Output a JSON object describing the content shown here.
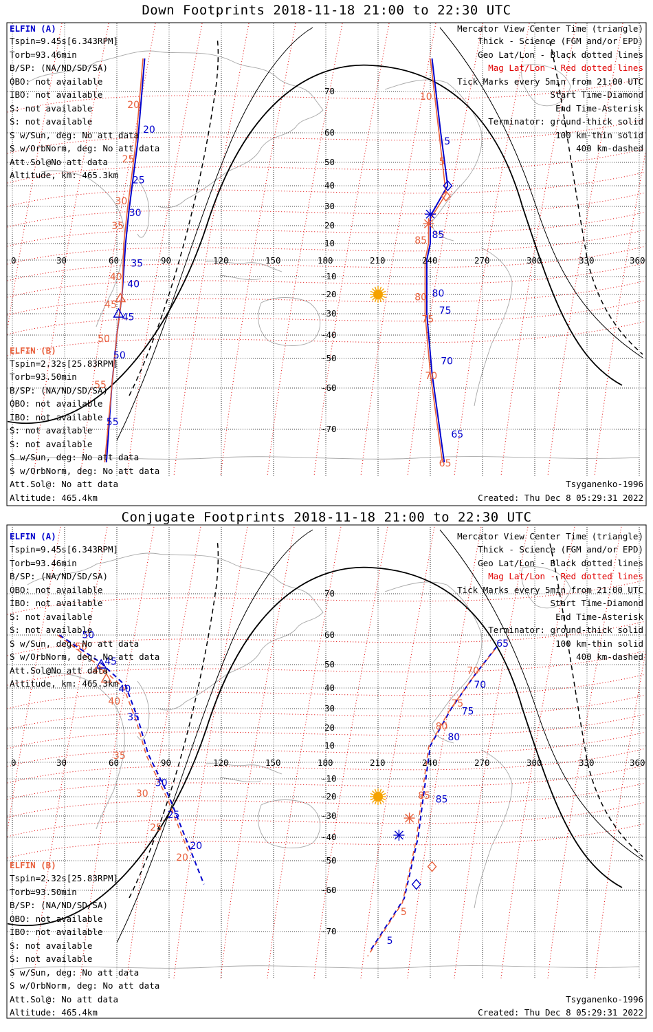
{
  "top_panel": {
    "title": "Down Footprints 2018-11-18 21:00 to 22:30 UTC",
    "elfin_a": {
      "header": "ELFIN (A)",
      "lines": [
        "Tspin=9.45s[6.343RPM]",
        "Torb=93.46min",
        "B/SP: (NA/ND/SD/SA)",
        "OBO: not available",
        "IBO: not available",
        "S: not available",
        "S: not available",
        "S w/Sun, deg: No att data",
        "S w/OrbNorm, deg: No att data",
        "Att.Sol@No att data",
        "Altitude, km: 465.3km"
      ]
    },
    "elfin_b": {
      "header": "ELFIN (B)",
      "lines": [
        "Tspin=2.32s[25.83RPM]",
        "Torb=93.50min",
        "B/SP: (NA/ND/SD/SA)",
        "OBO: not available",
        "IBO: not available",
        "S: not available",
        "S: not available",
        "S w/Sun, deg: No att data",
        "S w/OrbNorm, deg: No att data",
        "Att.Sol@: No att data",
        "Altitude: 465.4km"
      ]
    },
    "legend": [
      "Mercator View Center Time (triangle)",
      "Thick - Science (FGM and/or EPD)",
      "Geo Lat/Lon - Black dotted lines",
      "Mag Lat/Lon - Red dotted lines",
      "Tick Marks every 5min from 21:00 UTC",
      "Start Time-Diamond",
      "End Time-Asterisk",
      "Terminator: ground-thick solid",
      "100 km-thin solid",
      "400 km-dashed"
    ],
    "model": "Tsyganenko-1996",
    "created": "Created: Thu Dec  8 05:29:31 2022"
  },
  "bottom_panel": {
    "title": "Conjugate Footprints 2018-11-18 21:00 to 22:30 UTC",
    "elfin_a": {
      "header": "ELFIN (A)",
      "lines": [
        "Tspin=9.45s[6.343RPM]",
        "Torb=93.46min",
        "B/SP: (NA/ND/SD/SA)",
        "OBO: not available",
        "IBO: not available",
        "S: not available",
        "S: not available",
        "S w/Sun, deg: No att data",
        "S w/OrbNorm, deg: No att data",
        "Att.Sol@No att data",
        "Altitude, km: 465.3km"
      ]
    },
    "elfin_b": {
      "header": "ELFIN (B)",
      "lines": [
        "Tspin=2.32s[25.83RPM]",
        "Torb=93.50min",
        "B/SP: (NA/ND/SD/SA)",
        "OBO: not available",
        "IBO: not available",
        "S: not available",
        "S: not available",
        "S w/Sun, deg: No att data",
        "S w/OrbNorm, deg: No att data",
        "Att.Sol@: No att data",
        "Altitude: 465.4km"
      ]
    },
    "legend": [
      "Mercator View Center Time (triangle)",
      "Thick - Science (FGM and/or EPD)",
      "Geo Lat/Lon - Black dotted lines",
      "Mag Lat/Lon - Red dotted lines",
      "Tick Marks every 5min from 21:00 UTC",
      "Start Time-Diamond",
      "End Time-Asterisk",
      "Terminator: ground-thick solid",
      "100 km-thin solid",
      "400 km-dashed"
    ],
    "model": "Tsyganenko-1996",
    "created": "Created: Thu Dec  8 05:29:31 2022"
  },
  "lon_ticks": [
    "0",
    "30",
    "60",
    "90",
    "120",
    "150",
    "180",
    "210",
    "240",
    "270",
    "300",
    "330",
    "360"
  ],
  "lat_ticks": [
    {
      "lat": 70,
      "label": "70"
    },
    {
      "lat": 60,
      "label": "60"
    },
    {
      "lat": 50,
      "label": "50"
    },
    {
      "lat": 40,
      "label": "40"
    },
    {
      "lat": 30,
      "label": "30"
    },
    {
      "lat": 20,
      "label": "20"
    },
    {
      "lat": 10,
      "label": "10"
    },
    {
      "lat": -10,
      "label": "-10"
    },
    {
      "lat": -20,
      "label": "-20"
    },
    {
      "lat": -30,
      "label": "-30"
    },
    {
      "lat": -40,
      "label": "-40"
    },
    {
      "lat": -50,
      "label": "-50"
    },
    {
      "lat": -60,
      "label": "-60"
    },
    {
      "lat": -70,
      "label": "-70"
    }
  ],
  "colors": {
    "elfin_a": "#0000cc",
    "elfin_b": "#e8603c",
    "mag_grid": "#e00000",
    "sun": "#f5a200",
    "coast": "#a8a8a8"
  },
  "sun": {
    "top": {
      "lon": 210,
      "lat": -20
    },
    "bottom": {
      "lon": 210,
      "lat": -20
    }
  },
  "tracks": {
    "top": [
      {
        "sat": "a",
        "style": "solid",
        "points": [
          [
            76,
            78
          ],
          [
            72,
            57
          ],
          [
            67,
            28
          ],
          [
            65,
            10
          ],
          [
            63,
            -20
          ],
          [
            60,
            -40
          ],
          [
            57,
            -60
          ],
          [
            54,
            -78
          ]
        ]
      },
      {
        "sat": "b",
        "style": "solid",
        "points": [
          [
            75,
            78
          ],
          [
            71,
            57
          ],
          [
            66,
            28
          ],
          [
            64,
            10
          ],
          [
            63,
            -20
          ],
          [
            60,
            -40
          ],
          [
            57,
            -60
          ],
          [
            53,
            -78
          ]
        ]
      },
      {
        "sat": "a",
        "style": "solid",
        "points": [
          [
            241,
            78
          ],
          [
            246,
            60
          ],
          [
            250,
            40
          ],
          [
            240,
            25
          ],
          [
            240,
            10
          ],
          [
            238,
            0
          ],
          [
            238,
            -30
          ],
          [
            241,
            -55
          ],
          [
            248,
            -78
          ]
        ]
      },
      {
        "sat": "b",
        "style": "solid",
        "points": [
          [
            240,
            78
          ],
          [
            245,
            60
          ],
          [
            249,
            36
          ],
          [
            239,
            22
          ],
          [
            239,
            10
          ],
          [
            237,
            0
          ],
          [
            237,
            -30
          ],
          [
            240,
            -55
          ],
          [
            247,
            -78
          ]
        ]
      }
    ],
    "bottom": [
      {
        "sat": "a",
        "style": "dashed",
        "points": [
          [
            27,
            60
          ],
          [
            50,
            51
          ],
          [
            65,
            41
          ],
          [
            72,
            25
          ],
          [
            78,
            5
          ],
          [
            90,
            -20
          ],
          [
            102,
            -45
          ],
          [
            110,
            -58
          ]
        ]
      },
      {
        "sat": "b",
        "style": "dashed",
        "points": [
          [
            26,
            60
          ],
          [
            49,
            50
          ],
          [
            64,
            40
          ],
          [
            71,
            24
          ],
          [
            77,
            4
          ],
          [
            89,
            -21
          ],
          [
            101,
            -46
          ]
        ]
      },
      {
        "sat": "a",
        "style": "dashed",
        "points": [
          [
            278,
            56
          ],
          [
            265,
            45
          ],
          [
            252,
            30
          ],
          [
            240,
            10
          ],
          [
            236,
            -20
          ],
          [
            233,
            -40
          ],
          [
            225,
            -62
          ],
          [
            205,
            -75
          ]
        ]
      },
      {
        "sat": "b",
        "style": "dashed",
        "points": [
          [
            277,
            55
          ],
          [
            264,
            44
          ],
          [
            251,
            29
          ],
          [
            239,
            9
          ],
          [
            235,
            -21
          ],
          [
            232,
            -41
          ],
          [
            224,
            -63
          ],
          [
            204,
            -76
          ]
        ]
      }
    ]
  },
  "markers": {
    "top": [
      {
        "type": "triangle",
        "sat": "b",
        "lon": 62,
        "lat": -22
      },
      {
        "type": "triangle",
        "sat": "a",
        "lon": 61,
        "lat": -30
      },
      {
        "type": "diamond",
        "sat": "a",
        "lon": 250,
        "lat": 40
      },
      {
        "type": "diamond",
        "sat": "b",
        "lon": 249,
        "lat": 35
      },
      {
        "type": "asterisk",
        "sat": "a",
        "lon": 240,
        "lat": 26
      },
      {
        "type": "asterisk",
        "sat": "b",
        "lon": 239,
        "lat": 21
      }
    ],
    "bottom": [
      {
        "type": "triangle",
        "sat": "a",
        "lon": 51,
        "lat": 50
      },
      {
        "type": "triangle",
        "sat": "b",
        "lon": 54,
        "lat": 44
      },
      {
        "type": "diamond",
        "sat": "a",
        "lon": 232,
        "lat": -58
      },
      {
        "type": "diamond",
        "sat": "b",
        "lon": 241,
        "lat": -52
      },
      {
        "type": "asterisk",
        "sat": "a",
        "lon": 222,
        "lat": -39
      },
      {
        "type": "asterisk",
        "sat": "b",
        "lon": 228,
        "lat": -31
      }
    ]
  },
  "tick_labels": {
    "top": [
      {
        "sat": "b",
        "text": "20",
        "lon": 66,
        "lat": 66
      },
      {
        "sat": "a",
        "text": "20",
        "lon": 75,
        "lat": 60
      },
      {
        "sat": "b",
        "text": "25",
        "lon": 63,
        "lat": 50
      },
      {
        "sat": "a",
        "text": "25",
        "lon": 69,
        "lat": 41
      },
      {
        "sat": "b",
        "text": "30",
        "lon": 59,
        "lat": 31
      },
      {
        "sat": "a",
        "text": "30",
        "lon": 67,
        "lat": 25
      },
      {
        "sat": "b",
        "text": "35",
        "lon": 57,
        "lat": 18
      },
      {
        "sat": "a",
        "text": "35",
        "lon": 68,
        "lat": -4
      },
      {
        "sat": "b",
        "text": "40",
        "lon": 56,
        "lat": -12
      },
      {
        "sat": "a",
        "text": "40",
        "lon": 66,
        "lat": -16
      },
      {
        "sat": "b",
        "text": "45",
        "lon": 53,
        "lat": -27
      },
      {
        "sat": "a",
        "text": "45",
        "lon": 63,
        "lat": -33
      },
      {
        "sat": "b",
        "text": "50",
        "lon": 49,
        "lat": -43
      },
      {
        "sat": "a",
        "text": "50",
        "lon": 58,
        "lat": -50
      },
      {
        "sat": "b",
        "text": "55",
        "lon": 47,
        "lat": -60
      },
      {
        "sat": "a",
        "text": "55",
        "lon": 54,
        "lat": -69
      },
      {
        "sat": "b",
        "text": "10",
        "lon": 234,
        "lat": 68
      },
      {
        "sat": "a",
        "text": "5",
        "lon": 248,
        "lat": 56
      },
      {
        "sat": "b",
        "text": "5",
        "lon": 245,
        "lat": 49
      },
      {
        "sat": "b",
        "text": "85",
        "lon": 231,
        "lat": 10
      },
      {
        "sat": "a",
        "text": "85",
        "lon": 241,
        "lat": 13
      },
      {
        "sat": "b",
        "text": "80",
        "lon": 231,
        "lat": -23
      },
      {
        "sat": "a",
        "text": "80",
        "lon": 241,
        "lat": -21
      },
      {
        "sat": "b",
        "text": "75",
        "lon": 235,
        "lat": -34
      },
      {
        "sat": "a",
        "text": "75",
        "lon": 245,
        "lat": -30
      },
      {
        "sat": "b",
        "text": "70",
        "lon": 237,
        "lat": -57
      },
      {
        "sat": "a",
        "text": "70",
        "lon": 246,
        "lat": -52
      },
      {
        "sat": "a",
        "text": "65",
        "lon": 252,
        "lat": -72
      },
      {
        "sat": "b",
        "text": "65",
        "lon": 245,
        "lat": -79
      }
    ],
    "bottom": [
      {
        "sat": "a",
        "text": "50",
        "lon": 40,
        "lat": 59
      },
      {
        "sat": "b",
        "text": "50",
        "lon": 36,
        "lat": 55
      },
      {
        "sat": "a",
        "text": "45",
        "lon": 53,
        "lat": 50
      },
      {
        "sat": "b",
        "text": "45",
        "lon": 46,
        "lat": 46
      },
      {
        "sat": "a",
        "text": "40",
        "lon": 61,
        "lat": 38
      },
      {
        "sat": "b",
        "text": "40",
        "lon": 55,
        "lat": 32
      },
      {
        "sat": "a",
        "text": "35",
        "lon": 66,
        "lat": 24
      },
      {
        "sat": "b",
        "text": "35",
        "lon": 58,
        "lat": 2
      },
      {
        "sat": "a",
        "text": "30",
        "lon": 82,
        "lat": -14
      },
      {
        "sat": "b",
        "text": "30",
        "lon": 71,
        "lat": -20
      },
      {
        "sat": "a",
        "text": "25",
        "lon": 89,
        "lat": -31
      },
      {
        "sat": "b",
        "text": "25",
        "lon": 79,
        "lat": -37
      },
      {
        "sat": "a",
        "text": "20",
        "lon": 102,
        "lat": -45
      },
      {
        "sat": "b",
        "text": "20",
        "lon": 94,
        "lat": -50
      },
      {
        "sat": "a",
        "text": "65",
        "lon": 278,
        "lat": 56
      },
      {
        "sat": "b",
        "text": "70",
        "lon": 261,
        "lat": 46
      },
      {
        "sat": "a",
        "text": "70",
        "lon": 265,
        "lat": 40
      },
      {
        "sat": "b",
        "text": "75",
        "lon": 252,
        "lat": 31
      },
      {
        "sat": "a",
        "text": "75",
        "lon": 258,
        "lat": 27
      },
      {
        "sat": "b",
        "text": "80",
        "lon": 243,
        "lat": 19
      },
      {
        "sat": "a",
        "text": "80",
        "lon": 250,
        "lat": 13
      },
      {
        "sat": "b",
        "text": "85",
        "lon": 233,
        "lat": -21
      },
      {
        "sat": "a",
        "text": "85",
        "lon": 243,
        "lat": -23
      },
      {
        "sat": "b",
        "text": "5",
        "lon": 223,
        "lat": -66
      },
      {
        "sat": "a",
        "text": "5",
        "lon": 215,
        "lat": -73
      }
    ]
  }
}
